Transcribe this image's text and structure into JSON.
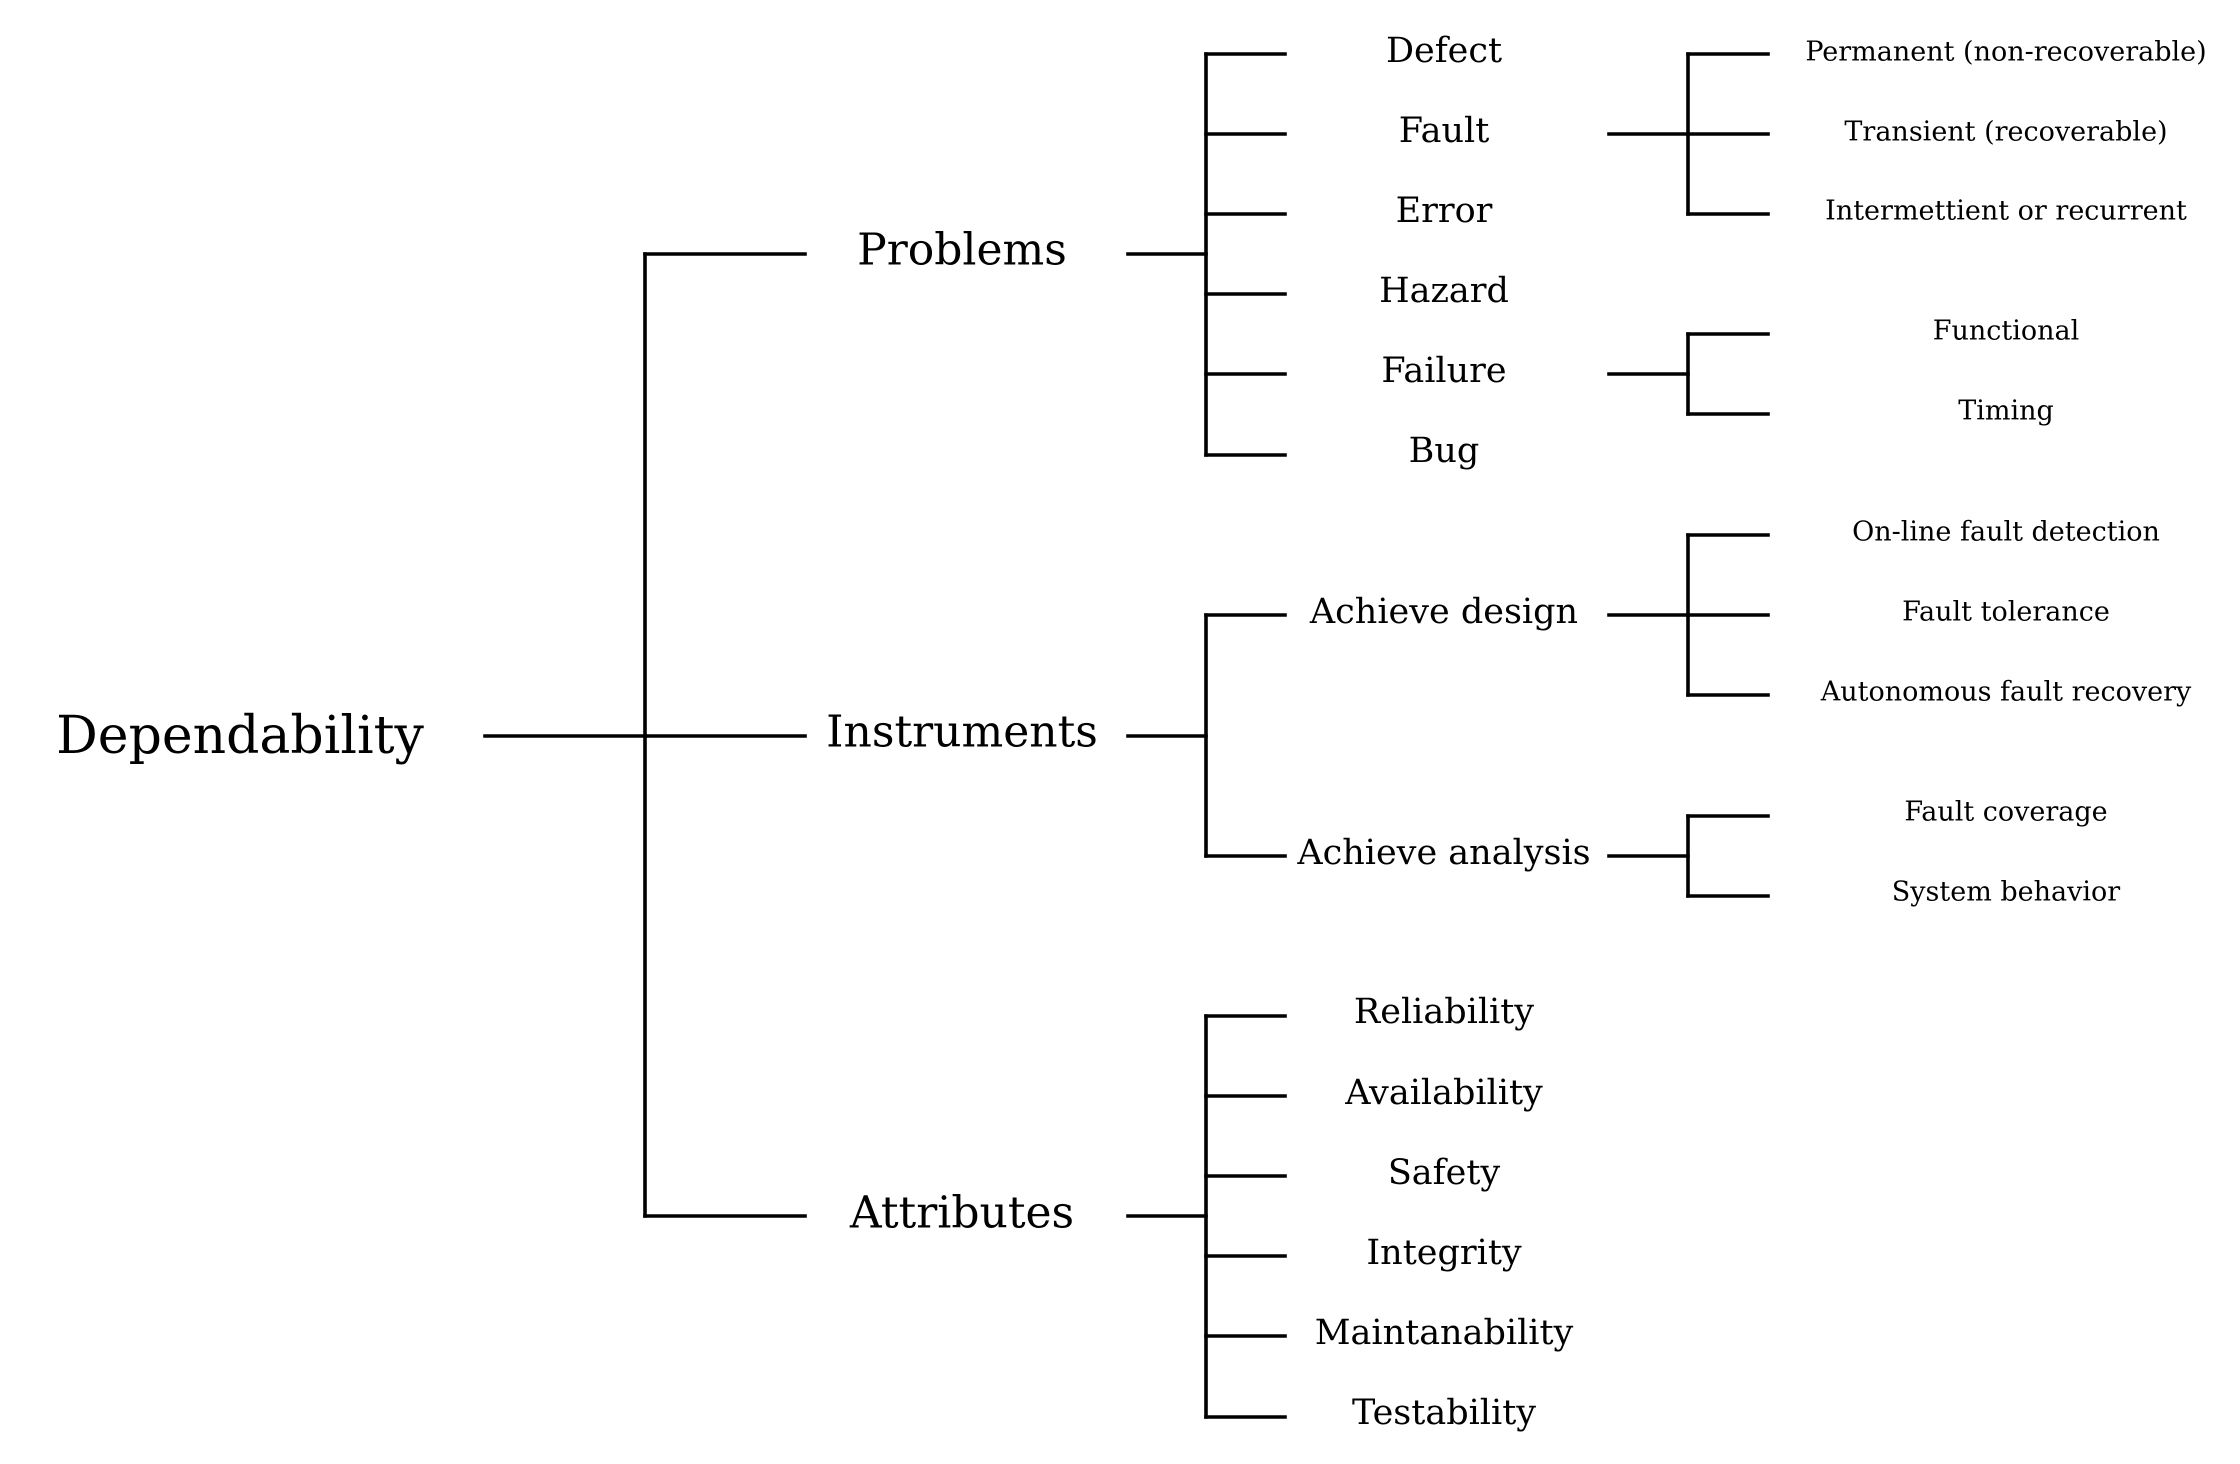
{
  "root": "Dependability",
  "branches": [
    {
      "label": "Problems",
      "children": [
        {
          "label": "Defect",
          "children": []
        },
        {
          "label": "Fault",
          "children": [
            "Permanent (non-recoverable)",
            "Transient (recoverable)",
            "Intermettient or recurrent"
          ]
        },
        {
          "label": "Error",
          "children": []
        },
        {
          "label": "Hazard",
          "children": []
        },
        {
          "label": "Failure",
          "children": [
            "Functional",
            "Timing"
          ]
        },
        {
          "label": "Bug",
          "children": []
        }
      ]
    },
    {
      "label": "Instruments",
      "children": [
        {
          "label": "Achieve design",
          "children": [
            "On-line fault detection",
            "Fault tolerance",
            "Autonomous fault recovery"
          ]
        },
        {
          "label": "Achieve analysis",
          "children": [
            "Fault coverage",
            "System behavior"
          ]
        }
      ]
    },
    {
      "label": "Attributes",
      "children": [
        {
          "label": "Reliability",
          "children": []
        },
        {
          "label": "Availability",
          "children": []
        },
        {
          "label": "Safety",
          "children": []
        },
        {
          "label": "Integrity",
          "children": []
        },
        {
          "label": "Maintanability",
          "children": []
        },
        {
          "label": "Testability",
          "children": []
        }
      ]
    }
  ]
}
